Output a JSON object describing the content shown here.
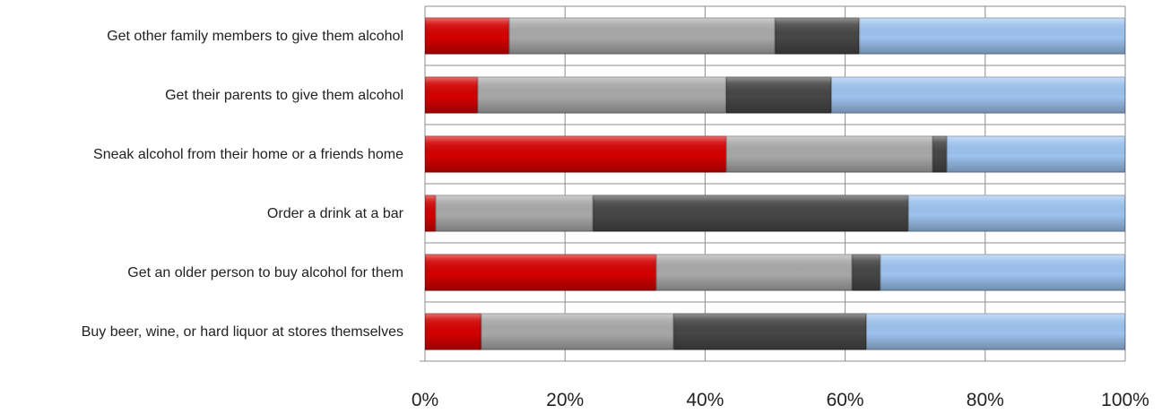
{
  "chart_data": {
    "type": "bar",
    "orientation": "horizontal",
    "stacked": true,
    "categories": [
      "Get other family members to give them alcohol",
      "Get their parents to give them alcohol",
      "Sneak alcohol from their home or a friends home",
      "Order a drink at a bar",
      "Get an older person to buy alcohol for them",
      "Buy beer, wine, or hard liquor at stores themselves"
    ],
    "series": [
      {
        "color": "#d40000",
        "values": [
          12,
          7.5,
          43,
          1.5,
          33,
          8
        ]
      },
      {
        "color": "#a8a8a8",
        "values": [
          38,
          35.5,
          29.5,
          22.5,
          28,
          27.5
        ]
      },
      {
        "color": "#464646",
        "values": [
          12,
          15,
          2,
          45,
          4,
          27.5
        ]
      },
      {
        "color": "#9cc2ee",
        "values": [
          38,
          42,
          25.5,
          31,
          35,
          37
        ]
      }
    ],
    "xlim": [
      0,
      100
    ],
    "x_ticks": [
      "0%",
      "20%",
      "40%",
      "60%",
      "80%",
      "100%"
    ],
    "grid": true,
    "title": "",
    "xlabel": "",
    "ylabel": ""
  }
}
